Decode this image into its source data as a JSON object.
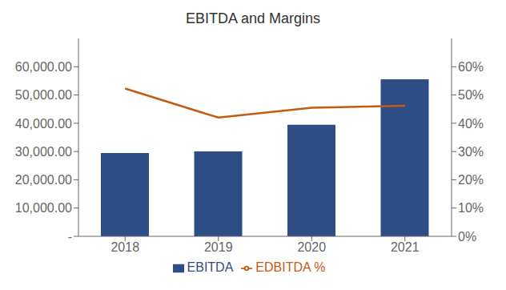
{
  "chart_data": {
    "type": "bar",
    "title": "EBITDA and Margins",
    "categories": [
      "2018",
      "2019",
      "2020",
      "2021"
    ],
    "series": [
      {
        "name": "EBITDA",
        "type": "bar",
        "color": "#2E4D87",
        "values": [
          29466,
          30016,
          39470,
          55557
        ]
      },
      {
        "name": "EDBITDA %",
        "type": "line",
        "color": "#C55A11",
        "axis": "y2",
        "values": [
          0.523,
          0.42,
          0.455,
          0.462
        ]
      }
    ],
    "ylim": [
      0,
      70000
    ],
    "yticks": [
      {
        "value": 0,
        "label": "-"
      },
      {
        "value": 10000,
        "label": "10,000.00"
      },
      {
        "value": 20000,
        "label": "20,000.00"
      },
      {
        "value": 30000,
        "label": "30,000.00"
      },
      {
        "value": 40000,
        "label": "40,000.00"
      },
      {
        "value": 50000,
        "label": "50,000.00"
      },
      {
        "value": 60000,
        "label": "60,000.00"
      }
    ],
    "y2lim": [
      0,
      0.7
    ],
    "y2ticks": [
      {
        "value": 0.0,
        "label": "0%"
      },
      {
        "value": 0.1,
        "label": "10%"
      },
      {
        "value": 0.2,
        "label": "20%"
      },
      {
        "value": 0.3,
        "label": "30%"
      },
      {
        "value": 0.4,
        "label": "40%"
      },
      {
        "value": 0.5,
        "label": "50%"
      },
      {
        "value": 0.6,
        "label": "60%"
      }
    ],
    "grid": false,
    "legend": "bottom"
  }
}
